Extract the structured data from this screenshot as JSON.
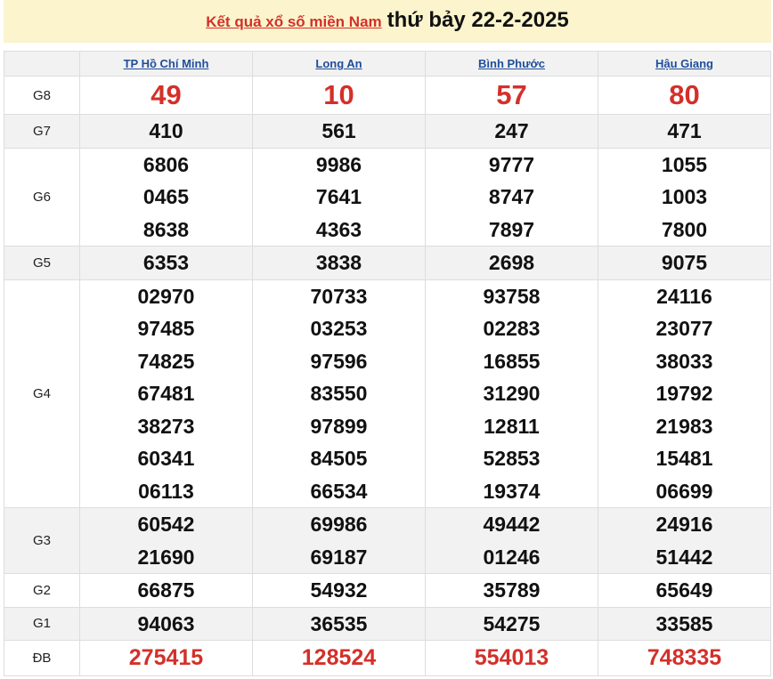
{
  "header": {
    "link": "Kết quả xổ số miền Nam",
    "date": "thứ bảy 22-2-2025"
  },
  "provinces": [
    "TP Hồ Chí Minh",
    "Long An",
    "Bình Phước",
    "Hậu Giang"
  ],
  "colors": {
    "accent_red": "#d3302a",
    "link_blue": "#1e4d9c",
    "title_bg": "#fbf4cc"
  },
  "rows": [
    {
      "label": "G8",
      "style": "big",
      "values": [
        [
          "49"
        ],
        [
          "10"
        ],
        [
          "57"
        ],
        [
          "80"
        ]
      ]
    },
    {
      "label": "G7",
      "style": "num",
      "values": [
        [
          "410"
        ],
        [
          "561"
        ],
        [
          "247"
        ],
        [
          "471"
        ]
      ]
    },
    {
      "label": "G6",
      "style": "num",
      "values": [
        [
          "6806",
          "0465",
          "8638"
        ],
        [
          "9986",
          "7641",
          "4363"
        ],
        [
          "9777",
          "8747",
          "7897"
        ],
        [
          "1055",
          "1003",
          "7800"
        ]
      ]
    },
    {
      "label": "G5",
      "style": "num",
      "values": [
        [
          "6353"
        ],
        [
          "3838"
        ],
        [
          "2698"
        ],
        [
          "9075"
        ]
      ]
    },
    {
      "label": "G4",
      "style": "num",
      "values": [
        [
          "02970",
          "97485",
          "74825",
          "67481",
          "38273",
          "60341",
          "06113"
        ],
        [
          "70733",
          "03253",
          "97596",
          "83550",
          "97899",
          "84505",
          "66534"
        ],
        [
          "93758",
          "02283",
          "16855",
          "31290",
          "12811",
          "52853",
          "19374"
        ],
        [
          "24116",
          "23077",
          "38033",
          "19792",
          "21983",
          "15481",
          "06699"
        ]
      ]
    },
    {
      "label": "G3",
      "style": "num",
      "values": [
        [
          "60542",
          "21690"
        ],
        [
          "69986",
          "69187"
        ],
        [
          "49442",
          "01246"
        ],
        [
          "24916",
          "51442"
        ]
      ]
    },
    {
      "label": "G2",
      "style": "num",
      "values": [
        [
          "66875"
        ],
        [
          "54932"
        ],
        [
          "35789"
        ],
        [
          "65649"
        ]
      ]
    },
    {
      "label": "G1",
      "style": "num",
      "values": [
        [
          "94063"
        ],
        [
          "36535"
        ],
        [
          "54275"
        ],
        [
          "33585"
        ]
      ]
    },
    {
      "label": "ĐB",
      "style": "db",
      "values": [
        [
          "275415"
        ],
        [
          "128524"
        ],
        [
          "554013"
        ],
        [
          "748335"
        ]
      ]
    }
  ]
}
